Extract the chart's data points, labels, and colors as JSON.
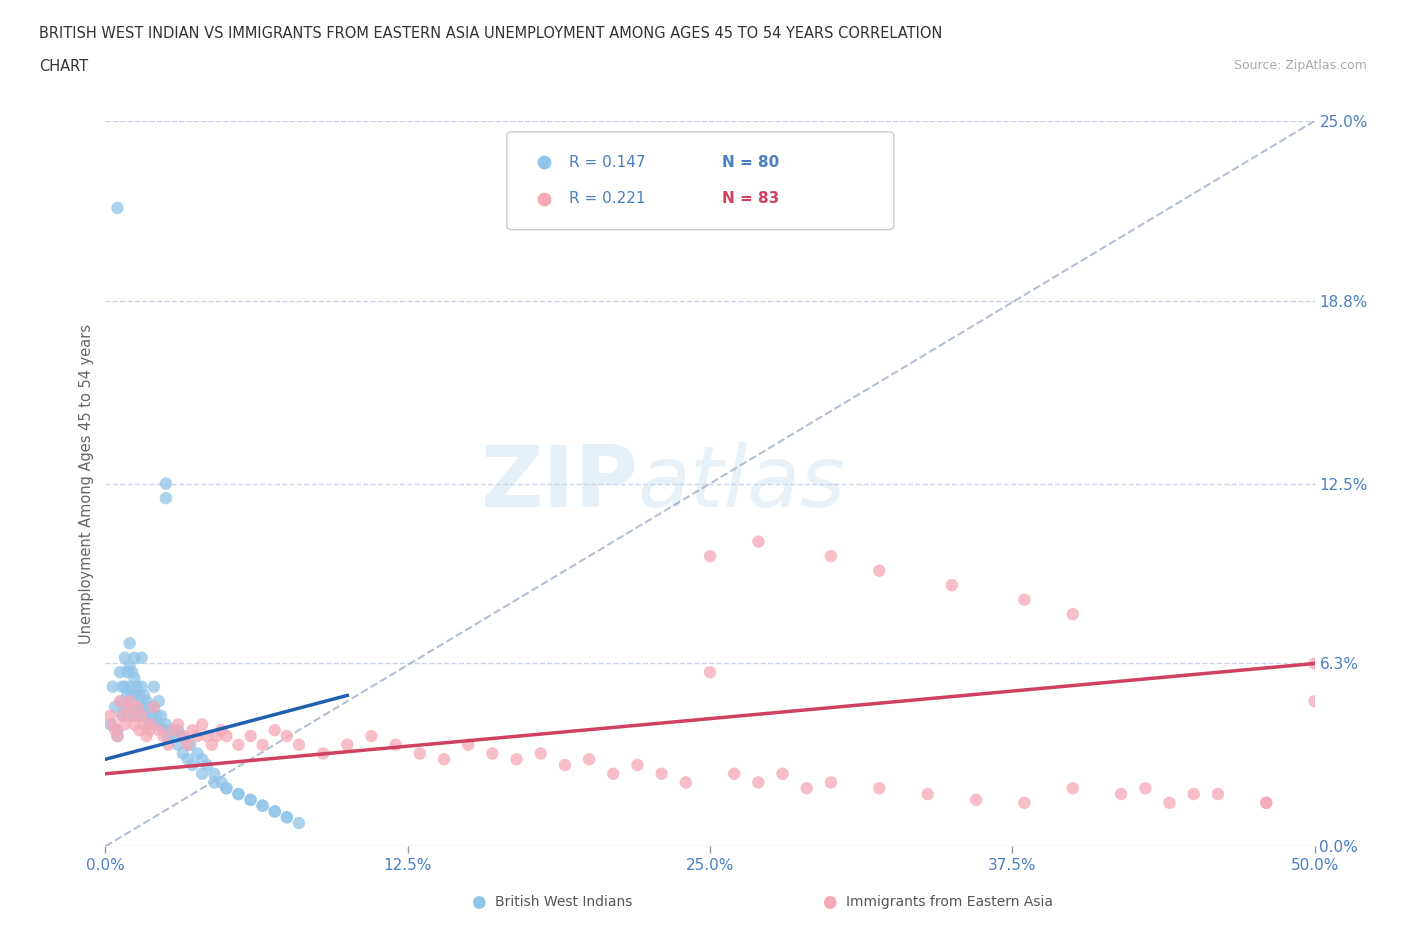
{
  "title_line1": "BRITISH WEST INDIAN VS IMMIGRANTS FROM EASTERN ASIA UNEMPLOYMENT AMONG AGES 45 TO 54 YEARS CORRELATION",
  "title_line2": "CHART",
  "source": "Source: ZipAtlas.com",
  "ylabel": "Unemployment Among Ages 45 to 54 years",
  "xlim": [
    0.0,
    0.5
  ],
  "ylim": [
    0.0,
    0.25
  ],
  "yticks": [
    0.0,
    0.063,
    0.125,
    0.188,
    0.25
  ],
  "ytick_labels": [
    "0.0%",
    "6.3%",
    "12.5%",
    "18.8%",
    "25.0%"
  ],
  "xticks": [
    0.0,
    0.125,
    0.25,
    0.375,
    0.5
  ],
  "xtick_labels": [
    "0.0%",
    "12.5%",
    "25.0%",
    "37.5%",
    "50.0%"
  ],
  "legend_r1": "R = 0.147",
  "legend_n1": "N = 80",
  "legend_r2": "R = 0.221",
  "legend_n2": "N = 83",
  "color_blue": "#90c4e8",
  "color_pink": "#f5a8b8",
  "color_trend_blue": "#2060b0",
  "color_trend_pink": "#d04060",
  "color_gray_trend": "#a0b0c8",
  "color_axis_text": "#4a7fc1",
  "color_title": "#333333",
  "color_source": "#aaaaaa",
  "color_ylabel": "#666666",
  "blue_x": [
    0.005,
    0.003,
    0.004,
    0.002,
    0.005,
    0.005,
    0.006,
    0.007,
    0.007,
    0.007,
    0.008,
    0.008,
    0.008,
    0.009,
    0.009,
    0.009,
    0.01,
    0.01,
    0.01,
    0.01,
    0.011,
    0.011,
    0.012,
    0.012,
    0.012,
    0.012,
    0.013,
    0.013,
    0.014,
    0.014,
    0.015,
    0.015,
    0.015,
    0.016,
    0.016,
    0.017,
    0.018,
    0.018,
    0.019,
    0.02,
    0.02,
    0.02,
    0.021,
    0.022,
    0.022,
    0.023,
    0.024,
    0.025,
    0.026,
    0.027,
    0.028,
    0.03,
    0.032,
    0.034,
    0.036,
    0.04,
    0.045,
    0.05,
    0.055,
    0.06,
    0.065,
    0.07,
    0.075,
    0.025,
    0.025,
    0.03,
    0.032,
    0.035,
    0.038,
    0.04,
    0.042,
    0.045,
    0.048,
    0.05,
    0.055,
    0.06,
    0.065,
    0.07,
    0.075,
    0.08
  ],
  "blue_y": [
    0.22,
    0.055,
    0.048,
    0.042,
    0.04,
    0.038,
    0.06,
    0.055,
    0.05,
    0.045,
    0.065,
    0.055,
    0.048,
    0.06,
    0.052,
    0.045,
    0.07,
    0.062,
    0.055,
    0.048,
    0.06,
    0.052,
    0.065,
    0.058,
    0.052,
    0.045,
    0.055,
    0.048,
    0.052,
    0.045,
    0.065,
    0.055,
    0.048,
    0.052,
    0.045,
    0.05,
    0.048,
    0.042,
    0.045,
    0.055,
    0.048,
    0.042,
    0.045,
    0.05,
    0.042,
    0.045,
    0.04,
    0.042,
    0.038,
    0.04,
    0.038,
    0.035,
    0.032,
    0.03,
    0.028,
    0.025,
    0.022,
    0.02,
    0.018,
    0.016,
    0.014,
    0.012,
    0.01,
    0.125,
    0.12,
    0.04,
    0.038,
    0.035,
    0.032,
    0.03,
    0.028,
    0.025,
    0.022,
    0.02,
    0.018,
    0.016,
    0.014,
    0.012,
    0.01,
    0.008
  ],
  "pink_x": [
    0.002,
    0.003,
    0.004,
    0.005,
    0.006,
    0.007,
    0.008,
    0.009,
    0.01,
    0.011,
    0.012,
    0.013,
    0.014,
    0.015,
    0.016,
    0.017,
    0.018,
    0.019,
    0.02,
    0.022,
    0.024,
    0.026,
    0.028,
    0.03,
    0.032,
    0.034,
    0.036,
    0.038,
    0.04,
    0.042,
    0.044,
    0.046,
    0.048,
    0.05,
    0.055,
    0.06,
    0.065,
    0.07,
    0.075,
    0.08,
    0.09,
    0.1,
    0.11,
    0.12,
    0.13,
    0.14,
    0.15,
    0.16,
    0.17,
    0.18,
    0.19,
    0.2,
    0.21,
    0.22,
    0.23,
    0.24,
    0.25,
    0.26,
    0.27,
    0.28,
    0.29,
    0.3,
    0.32,
    0.34,
    0.36,
    0.38,
    0.4,
    0.42,
    0.44,
    0.46,
    0.48,
    0.5,
    0.25,
    0.27,
    0.3,
    0.32,
    0.35,
    0.38,
    0.4,
    0.43,
    0.45,
    0.48,
    0.5
  ],
  "pink_y": [
    0.045,
    0.042,
    0.04,
    0.038,
    0.05,
    0.045,
    0.042,
    0.048,
    0.05,
    0.045,
    0.042,
    0.048,
    0.04,
    0.045,
    0.042,
    0.038,
    0.04,
    0.042,
    0.048,
    0.04,
    0.038,
    0.035,
    0.04,
    0.042,
    0.038,
    0.035,
    0.04,
    0.038,
    0.042,
    0.038,
    0.035,
    0.038,
    0.04,
    0.038,
    0.035,
    0.038,
    0.035,
    0.04,
    0.038,
    0.035,
    0.032,
    0.035,
    0.038,
    0.035,
    0.032,
    0.03,
    0.035,
    0.032,
    0.03,
    0.032,
    0.028,
    0.03,
    0.025,
    0.028,
    0.025,
    0.022,
    0.06,
    0.025,
    0.022,
    0.025,
    0.02,
    0.022,
    0.02,
    0.018,
    0.016,
    0.015,
    0.02,
    0.018,
    0.015,
    0.018,
    0.015,
    0.063,
    0.1,
    0.105,
    0.1,
    0.095,
    0.09,
    0.085,
    0.08,
    0.02,
    0.018,
    0.015,
    0.05
  ],
  "blue_trend_x0": 0.0,
  "blue_trend_x1": 0.1,
  "blue_trend_y0": 0.03,
  "blue_trend_y1": 0.052,
  "pink_trend_x0": 0.0,
  "pink_trend_x1": 0.5,
  "pink_trend_y0": 0.025,
  "pink_trend_y1": 0.063,
  "gray_trend_x0": 0.0,
  "gray_trend_x1": 0.5,
  "gray_trend_y0": 0.0,
  "gray_trend_y1": 0.25
}
